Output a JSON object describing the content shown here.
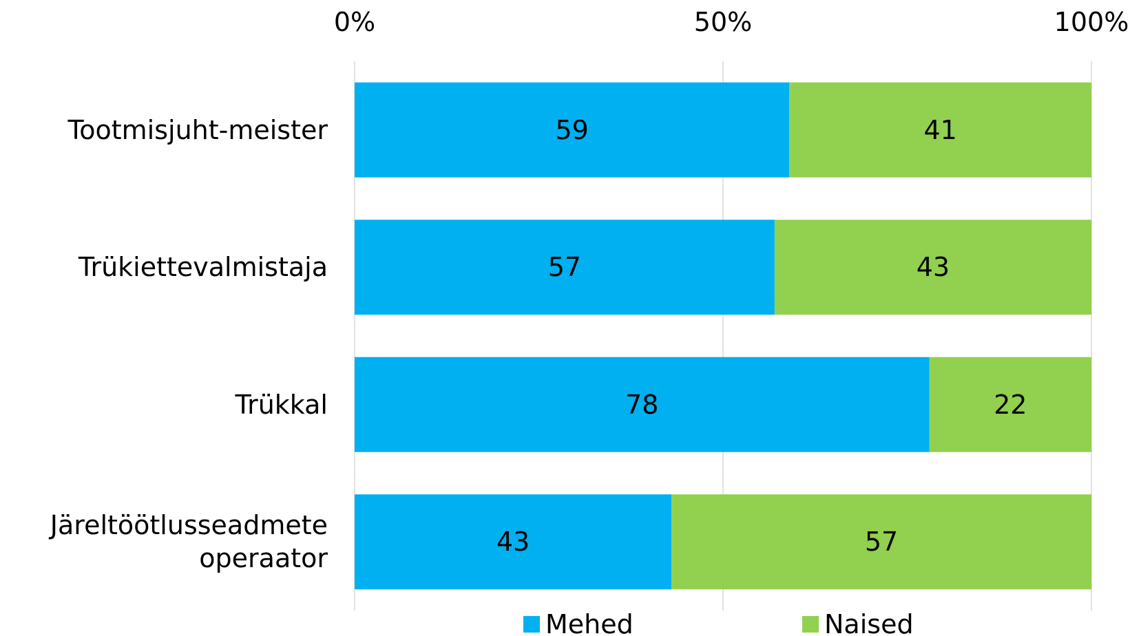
{
  "chart_data": {
    "type": "stacked-bar-horizontal",
    "categories": [
      "Tootmisjuht-meister",
      "Trükiettevalmistaja",
      "Trükkal",
      "Järeltöötlusseadmete\noperaator"
    ],
    "series": [
      {
        "name": "Mehed",
        "color": "#00b0f0",
        "values": [
          59,
          57,
          78,
          43
        ]
      },
      {
        "name": "Naised",
        "color": "#92d050",
        "values": [
          41,
          43,
          22,
          57
        ]
      }
    ],
    "xlim": [
      0,
      100
    ],
    "xticks": [
      {
        "value": 0,
        "label": "0%"
      },
      {
        "value": 50,
        "label": "50%"
      },
      {
        "value": 100,
        "label": "100%"
      }
    ],
    "grid": true,
    "legend": "bottom"
  }
}
